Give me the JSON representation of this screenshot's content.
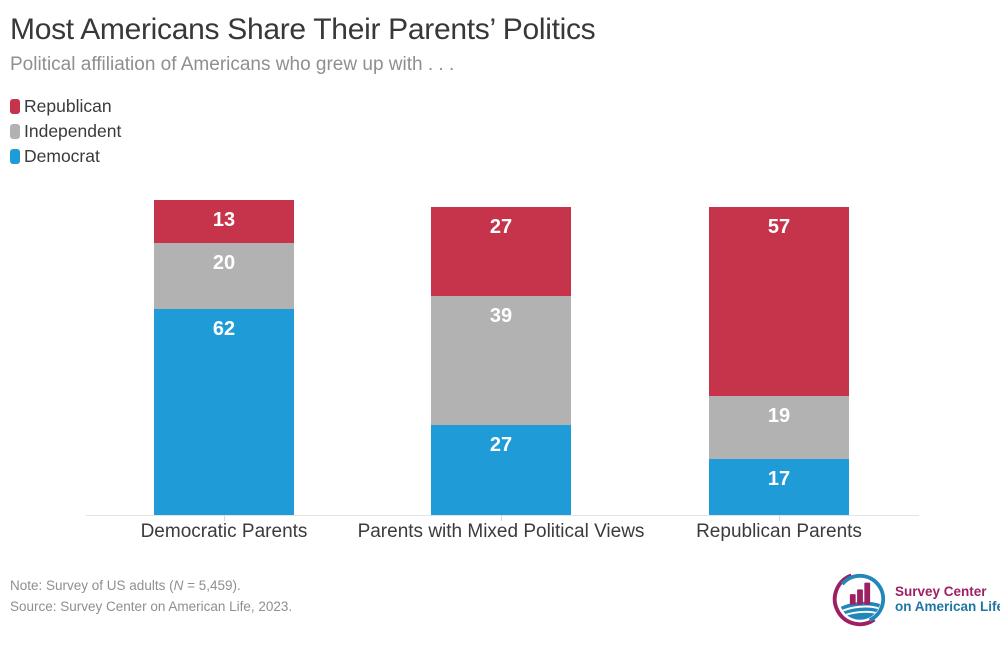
{
  "title": "Most Americans Share Their Parents’ Politics",
  "subtitle": "Political affiliation of Americans who grew up with . . .",
  "legend": [
    {
      "label": "Republican",
      "color": "#c6344c"
    },
    {
      "label": "Independent",
      "color": "#b3b2b2"
    },
    {
      "label": "Democrat",
      "color": "#1f9bd7"
    }
  ],
  "chart_data": {
    "type": "bar",
    "stacked": true,
    "title": "Most Americans Share Their Parents’ Politics",
    "subtitle": "Political affiliation of Americans who grew up with . . .",
    "categories": [
      "Democratic Parents",
      "Parents with Mixed Political Views",
      "Republican Parents"
    ],
    "series": [
      {
        "name": "Republican",
        "color": "#c6344c",
        "values": [
          13,
          27,
          57
        ]
      },
      {
        "name": "Independent",
        "color": "#b3b2b2",
        "values": [
          20,
          39,
          19
        ]
      },
      {
        "name": "Democrat",
        "color": "#1f9bd7",
        "values": [
          62,
          27,
          17
        ]
      }
    ],
    "value_labels": "inside-top-white",
    "legend_position": "top-left",
    "grid": false,
    "y_axis_visible": false,
    "ylim": [
      0,
      95
    ]
  },
  "note": {
    "prefix": "Note: Survey of US adults (",
    "n": "N",
    "suffix": " = 5,459)."
  },
  "source": "Source: Survey Center on American Life, 2023.",
  "logo": {
    "line1": "Survey Center",
    "line2": "on American Life",
    "magenta": "#9d2063",
    "blue": "#2186b8"
  }
}
